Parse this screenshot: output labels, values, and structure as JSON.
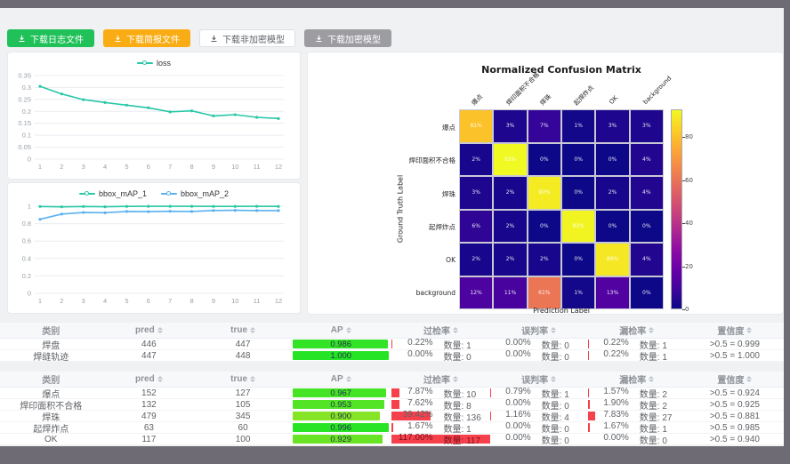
{
  "toolbar": {
    "buttons": [
      {
        "label": "下载日志文件",
        "style": "green"
      },
      {
        "label": "下载简报文件",
        "style": "orange"
      },
      {
        "label": "下载非加密模型",
        "style": "plain"
      },
      {
        "label": "下载加密模型",
        "style": "gray"
      }
    ]
  },
  "colors": {
    "accent_green": "#1fc158",
    "accent_orange": "#f9ac13",
    "button_gray": "#9d9ca1",
    "loss_line": "#29c7a7",
    "map1_line": "#29c7a7",
    "map2_line": "#5ab1ef",
    "rate_bar_red": "#f5313d"
  },
  "chart_data": [
    {
      "type": "line",
      "title": "",
      "legend": [
        "loss"
      ],
      "x": [
        1,
        2,
        3,
        4,
        5,
        6,
        7,
        8,
        9,
        10,
        11,
        12
      ],
      "series": [
        {
          "name": "loss",
          "color": "#29c7a7",
          "values": [
            0.305,
            0.273,
            0.249,
            0.237,
            0.226,
            0.215,
            0.198,
            0.202,
            0.181,
            0.186,
            0.175,
            0.17
          ]
        }
      ],
      "ylim": [
        0,
        0.35
      ],
      "yticks": [
        0,
        0.05,
        0.1,
        0.15,
        0.2,
        0.25,
        0.3,
        0.35
      ],
      "grid": true,
      "legend_position": "top"
    },
    {
      "type": "line",
      "title": "",
      "legend": [
        "bbox_mAP_1",
        "bbox_mAP_2"
      ],
      "x": [
        1,
        2,
        3,
        4,
        5,
        6,
        7,
        8,
        9,
        10,
        11,
        12
      ],
      "series": [
        {
          "name": "bbox_mAP_1",
          "color": "#29c7a7",
          "values": [
            0.997,
            0.993,
            0.997,
            0.994,
            0.998,
            0.999,
            0.999,
            0.999,
            0.998,
            0.998,
            0.999,
            0.998
          ]
        },
        {
          "name": "bbox_mAP_2",
          "color": "#5ab1ef",
          "values": [
            0.85,
            0.91,
            0.928,
            0.925,
            0.94,
            0.938,
            0.942,
            0.94,
            0.951,
            0.953,
            0.95,
            0.95
          ]
        }
      ],
      "ylim": [
        0,
        1
      ],
      "yticks": [
        0,
        0.2,
        0.4,
        0.6,
        0.8,
        1
      ],
      "grid": true,
      "legend_position": "top"
    },
    {
      "type": "heatmap",
      "title": "Normalized Confusion Matrix",
      "xlabel": "Prediction Label",
      "ylabel": "Ground Truth Label",
      "labels": [
        "爆点",
        "焊印面积不合格",
        "焊珠",
        "起焊炸点",
        "OK",
        "background"
      ],
      "unit": "%",
      "matrix": [
        [
          81,
          3,
          7,
          1,
          3,
          3
        ],
        [
          2,
          93,
          0,
          0,
          0,
          4
        ],
        [
          3,
          2,
          90,
          0,
          2,
          4
        ],
        [
          6,
          2,
          0,
          92,
          0,
          0
        ],
        [
          2,
          2,
          2,
          0,
          89,
          4
        ],
        [
          12,
          11,
          61,
          1,
          13,
          0
        ]
      ],
      "vmax": 93,
      "colorbar_ticks": [
        0,
        20,
        40,
        60,
        80
      ],
      "colormap": "plasma"
    }
  ],
  "table_headers": [
    {
      "key": "category",
      "label": "类别",
      "sortable": false
    },
    {
      "key": "pred",
      "label": "pred",
      "sortable": true
    },
    {
      "key": "true_",
      "label": "true",
      "sortable": true
    },
    {
      "key": "ap",
      "label": "AP",
      "sortable": true
    },
    {
      "key": "over",
      "label": "过检率",
      "sortable": true
    },
    {
      "key": "mis",
      "label": "误判率",
      "sortable": true
    },
    {
      "key": "miss",
      "label": "漏检率",
      "sortable": true
    },
    {
      "key": "conf",
      "label": "置信度",
      "sortable": true
    }
  ],
  "quantity_label": "数量:",
  "tables": [
    {
      "rows": [
        {
          "category": "焊盘",
          "pred": 446,
          "true_": 447,
          "ap": 0.986,
          "over": {
            "pct": 0.22,
            "count": 1
          },
          "mis": {
            "pct": 0.0,
            "count": 0
          },
          "miss": {
            "pct": 0.22,
            "count": 1
          },
          "conf": ">0.5 = 0.999"
        },
        {
          "category": "焊缝轨迹",
          "pred": 447,
          "true_": 448,
          "ap": 1.0,
          "over": {
            "pct": 0.0,
            "count": 0
          },
          "mis": {
            "pct": 0.0,
            "count": 0
          },
          "miss": {
            "pct": 0.22,
            "count": 1
          },
          "conf": ">0.5 = 1.000"
        }
      ]
    },
    {
      "rows": [
        {
          "category": "爆点",
          "pred": 152,
          "true_": 127,
          "ap": 0.967,
          "over": {
            "pct": 7.87,
            "count": 10
          },
          "mis": {
            "pct": 0.79,
            "count": 1
          },
          "miss": {
            "pct": 1.57,
            "count": 2
          },
          "conf": ">0.5 = 0.924"
        },
        {
          "category": "焊印面积不合格",
          "pred": 132,
          "true_": 105,
          "ap": 0.953,
          "over": {
            "pct": 7.62,
            "count": 8
          },
          "mis": {
            "pct": 0.0,
            "count": 0
          },
          "miss": {
            "pct": 1.9,
            "count": 2
          },
          "conf": ">0.5 = 0.925"
        },
        {
          "category": "焊珠",
          "pred": 479,
          "true_": 345,
          "ap": 0.9,
          "over": {
            "pct": 39.42,
            "count": 136
          },
          "mis": {
            "pct": 1.16,
            "count": 4
          },
          "miss": {
            "pct": 7.83,
            "count": 27
          },
          "conf": ">0.5 = 0.881"
        },
        {
          "category": "起焊炸点",
          "pred": 63,
          "true_": 60,
          "ap": 0.996,
          "over": {
            "pct": 1.67,
            "count": 1
          },
          "mis": {
            "pct": 0.0,
            "count": 0
          },
          "miss": {
            "pct": 1.67,
            "count": 1
          },
          "conf": ">0.5 = 0.985"
        },
        {
          "category": "OK",
          "pred": 117,
          "true_": 100,
          "ap": 0.929,
          "over": {
            "pct": 117.0,
            "count": 117
          },
          "mis": {
            "pct": 0.0,
            "count": 0
          },
          "miss": {
            "pct": 0.0,
            "count": 0
          },
          "conf": ">0.5 = 0.940"
        }
      ]
    }
  ]
}
